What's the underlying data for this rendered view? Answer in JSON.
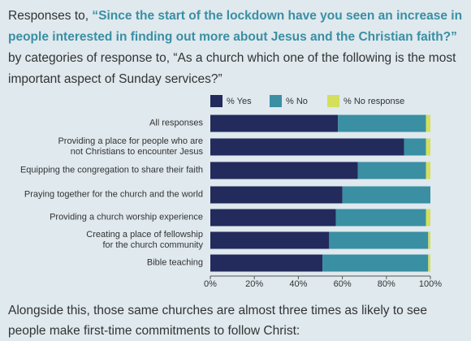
{
  "intro": {
    "lead": "Responses to,",
    "question": "“Since the start of the lockdown have you seen an increase in people interested in finding out more about Jesus and the Christian faith?”",
    "rest": "by categories of response to, “As a church which one of the following is the most important aspect of Sunday services?”"
  },
  "chart_data": {
    "type": "stacked-bar-horizontal",
    "categories": [
      "All responses",
      "Providing a place for people who are\nnot Christians to encounter Jesus",
      "Equipping the congregation to share their faith",
      "Praying together for the church and the world",
      "Providing a church worship experience",
      "Creating a place of fellowship\nfor the church community",
      "Bible teaching"
    ],
    "series": [
      {
        "name": "% Yes",
        "color": "#232a5c",
        "values": [
          58,
          88,
          67,
          60,
          57,
          54,
          51
        ]
      },
      {
        "name": "% No",
        "color": "#3a8fa3",
        "values": [
          40,
          10,
          31,
          40,
          41,
          45,
          48
        ]
      },
      {
        "name": "% No response",
        "color": "#d4df5c",
        "values": [
          2,
          2,
          2,
          0,
          2,
          1,
          1
        ]
      }
    ],
    "xlim": [
      0,
      100
    ],
    "xticks": [
      {
        "value": 0,
        "label": "0%"
      },
      {
        "value": 20,
        "label": "20%"
      },
      {
        "value": 40,
        "label": "40%"
      },
      {
        "value": 60,
        "label": "60%"
      },
      {
        "value": 80,
        "label": "80%"
      },
      {
        "value": 100,
        "label": "100%"
      }
    ],
    "legend": "top"
  },
  "footer": "Alongside this, those same churches are almost three times as likely to see people make first-time commitments to follow Christ:"
}
